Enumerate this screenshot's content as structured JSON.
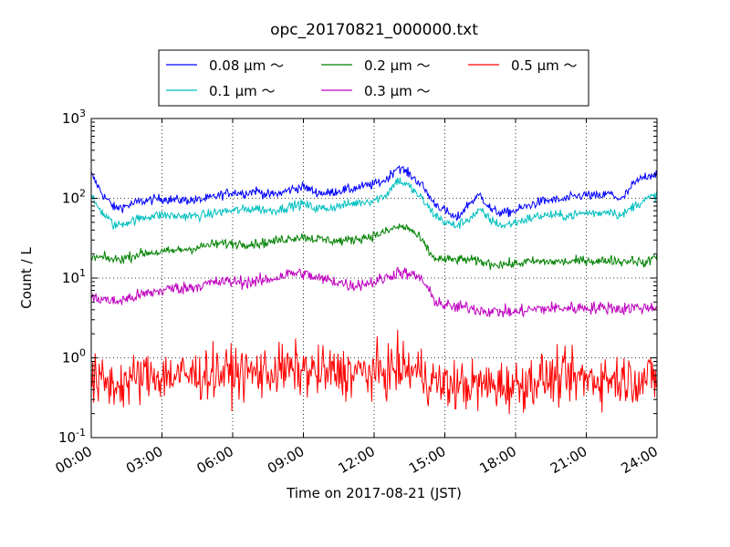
{
  "chart_data": {
    "type": "line",
    "title": "opc_20170821_000000.txt",
    "xlabel": "Time on 2017-08-21 (JST)",
    "ylabel": "Count / L",
    "y_scale": "log",
    "xlim": [
      "00:00",
      "24:00"
    ],
    "ylim": [
      0.1,
      1000
    ],
    "grid": true,
    "legend_position": "top-center, outside plot",
    "x_ticks": [
      "00:00",
      "03:00",
      "06:00",
      "09:00",
      "12:00",
      "15:00",
      "18:00",
      "21:00",
      "24:00"
    ],
    "y_ticks": [
      {
        "base": "10",
        "exp": "-1"
      },
      {
        "base": "10",
        "exp": "0"
      },
      {
        "base": "10",
        "exp": "1"
      },
      {
        "base": "10",
        "exp": "2"
      },
      {
        "base": "10",
        "exp": "3"
      }
    ],
    "x_hours": [
      0,
      0.5,
      1,
      1.5,
      2,
      2.5,
      3,
      3.5,
      4,
      4.5,
      5,
      5.5,
      6,
      6.5,
      7,
      7.5,
      8,
      8.5,
      9,
      9.5,
      10,
      10.5,
      11,
      11.5,
      12,
      12.5,
      13,
      13.5,
      14,
      14.5,
      15,
      15.5,
      16,
      16.5,
      17,
      17.5,
      18,
      18.5,
      19,
      19.5,
      20,
      20.5,
      21,
      21.5,
      22,
      22.5,
      23,
      23.5,
      24
    ],
    "series": [
      {
        "name": "0.08 μm ～",
        "color": "#0000ff",
        "noise": 0.03,
        "values": [
          200,
          110,
          75,
          80,
          90,
          95,
          100,
          95,
          95,
          95,
          100,
          110,
          120,
          115,
          125,
          110,
          115,
          130,
          140,
          120,
          115,
          125,
          130,
          140,
          150,
          170,
          250,
          200,
          150,
          90,
          70,
          55,
          85,
          110,
          70,
          65,
          70,
          80,
          90,
          95,
          95,
          105,
          110,
          105,
          115,
          95,
          150,
          190,
          205
        ]
      },
      {
        "name": "0.1 μm ～",
        "color": "#00bfbf",
        "noise": 0.03,
        "values": [
          100,
          65,
          45,
          50,
          55,
          60,
          62,
          60,
          60,
          60,
          63,
          68,
          70,
          72,
          75,
          70,
          73,
          80,
          85,
          75,
          75,
          80,
          85,
          90,
          95,
          110,
          170,
          140,
          100,
          65,
          50,
          45,
          55,
          70,
          52,
          45,
          50,
          55,
          60,
          62,
          60,
          62,
          66,
          65,
          70,
          60,
          80,
          95,
          110
        ]
      },
      {
        "name": "0.2 μm ～",
        "color": "#008000",
        "noise": 0.03,
        "values": [
          18,
          18,
          17,
          18,
          20,
          21,
          21,
          22,
          23,
          24,
          26,
          27,
          27,
          27,
          27,
          28,
          30,
          32,
          33,
          31,
          30,
          29,
          30,
          32,
          34,
          38,
          44,
          42,
          30,
          18,
          17,
          17,
          17,
          16,
          15,
          15,
          15,
          16,
          16,
          16,
          16,
          16,
          17,
          16,
          17,
          16,
          17,
          15,
          20
        ]
      },
      {
        "name": "0.3 μm ～",
        "color": "#bf00bf",
        "noise": 0.04,
        "values": [
          5.5,
          5.5,
          5.0,
          5.5,
          6.0,
          6.5,
          7.0,
          7.5,
          7.5,
          8.0,
          8.5,
          9.0,
          9.0,
          9.0,
          9.0,
          9.5,
          10.5,
          11.5,
          11.5,
          10.0,
          9.5,
          9.0,
          8.0,
          8.5,
          9.0,
          10.0,
          12.0,
          11.0,
          10.0,
          5.5,
          4.5,
          4.3,
          4.3,
          4.0,
          3.8,
          3.8,
          3.7,
          4.0,
          4.1,
          4.2,
          4.2,
          4.2,
          4.3,
          4.2,
          4.3,
          4.1,
          4.3,
          4.2,
          4.5
        ]
      },
      {
        "name": "0.5 μm ～",
        "color": "#ff0000",
        "noise": 0.16,
        "values": [
          0.5,
          0.5,
          0.45,
          0.5,
          0.55,
          0.6,
          0.6,
          0.6,
          0.6,
          0.6,
          0.65,
          0.65,
          0.65,
          0.65,
          0.65,
          0.65,
          0.7,
          0.7,
          0.7,
          0.65,
          0.65,
          0.65,
          0.65,
          0.65,
          0.65,
          0.65,
          0.75,
          0.7,
          0.65,
          0.5,
          0.45,
          0.45,
          0.45,
          0.45,
          0.45,
          0.45,
          0.45,
          0.5,
          0.55,
          0.55,
          0.55,
          0.55,
          0.55,
          0.55,
          0.55,
          0.55,
          0.55,
          0.55,
          0.55
        ]
      }
    ]
  }
}
